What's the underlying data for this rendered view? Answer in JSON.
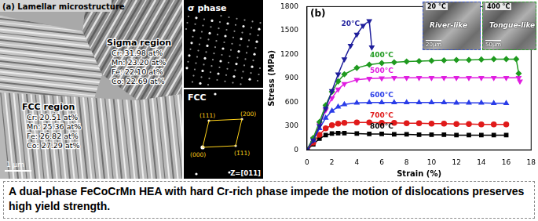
{
  "panel_a": {
    "label": "(a) Lamellar microstructure",
    "scale_bar": "1 μm",
    "regions": [
      {
        "name": "Sigma region",
        "composition": [
          "Cr: 31.98 at%",
          "Mn: 23.20 at%",
          "Fe: 22.10 at%",
          "Co: 22.69 at%"
        ]
      },
      {
        "name": "FCC region",
        "composition": [
          "Cr: 20.51 at%",
          "Mn: 25.36 at%",
          "Fe: 26.82 at%",
          "Co: 27.29 at%"
        ]
      }
    ],
    "diffraction": [
      {
        "title": "σ phase"
      },
      {
        "title": "FCC",
        "indices": [
          "(111)",
          "(200)",
          "(000)",
          "(1̄11)"
        ],
        "zone_axis": "Z=[011]"
      }
    ]
  },
  "chart_data": {
    "type": "line",
    "title": "(b)",
    "x_label": "Strain (%)",
    "y_label": "Stress (MPa)",
    "xlim": [
      0,
      18
    ],
    "xticks": [
      0,
      2,
      4,
      6,
      8,
      10,
      12,
      14,
      16,
      18
    ],
    "ylim": [
      0,
      1800
    ],
    "yticks": [
      0,
      300,
      600,
      900,
      1200,
      1500,
      1800
    ],
    "grid": false,
    "series": [
      {
        "name": "20°C",
        "color": "#1f1f9c",
        "marker": "triangle-down",
        "x": [
          0,
          0.5,
          1,
          1.5,
          2,
          2.5,
          3,
          3.5,
          4,
          4.5,
          5,
          5.2
        ],
        "values": [
          0,
          120,
          300,
          520,
          740,
          950,
          1140,
          1310,
          1450,
          1560,
          1620,
          1290
        ]
      },
      {
        "name": "400°C",
        "color": "#1f9a1f",
        "marker": "diamond",
        "x": [
          0,
          0.5,
          1,
          1.5,
          2,
          2.5,
          3,
          4,
          5,
          6,
          7,
          8,
          9,
          10,
          11,
          12,
          13,
          14,
          15,
          16,
          16.8,
          17
        ],
        "values": [
          0,
          150,
          350,
          560,
          730,
          860,
          950,
          1030,
          1070,
          1090,
          1100,
          1110,
          1115,
          1120,
          1125,
          1130,
          1130,
          1135,
          1140,
          1140,
          1140,
          960
        ]
      },
      {
        "name": "500°C",
        "color": "#e01ee0",
        "marker": "triangle-down",
        "x": [
          0,
          0.5,
          1,
          1.5,
          2,
          2.5,
          3,
          4,
          5,
          6,
          7,
          8,
          9,
          10,
          11,
          12,
          13,
          14,
          15,
          16,
          17,
          17.1
        ],
        "values": [
          0,
          140,
          320,
          500,
          650,
          760,
          830,
          880,
          895,
          900,
          905,
          905,
          905,
          905,
          905,
          905,
          905,
          905,
          905,
          905,
          905,
          860
        ]
      },
      {
        "name": "600°C",
        "color": "#2a3de8",
        "marker": "triangle",
        "x": [
          0,
          0.5,
          1,
          1.5,
          2,
          2.5,
          3,
          4,
          5,
          6,
          7,
          8,
          9,
          10,
          11,
          12,
          13,
          14,
          15,
          16
        ],
        "values": [
          0,
          120,
          270,
          400,
          490,
          540,
          570,
          590,
          595,
          595,
          595,
          595,
          595,
          595,
          595,
          590,
          590,
          590,
          585,
          585
        ]
      },
      {
        "name": "700°C",
        "color": "#e01a1a",
        "marker": "circle",
        "x": [
          0,
          0.5,
          1,
          1.5,
          2,
          2.5,
          3,
          4,
          5,
          6,
          7,
          8,
          9,
          10,
          11,
          12,
          13,
          14,
          15,
          16
        ],
        "values": [
          0,
          90,
          190,
          270,
          310,
          330,
          340,
          345,
          345,
          340,
          340,
          335,
          335,
          330,
          330,
          325,
          325,
          320,
          320,
          320
        ]
      },
      {
        "name": "800°C",
        "color": "#000000",
        "marker": "square",
        "x": [
          0,
          0.5,
          1,
          1.5,
          2,
          2.5,
          3,
          4,
          5,
          6,
          7,
          8,
          9,
          10,
          11,
          12,
          13,
          14,
          15,
          16
        ],
        "values": [
          0,
          70,
          140,
          185,
          205,
          210,
          210,
          205,
          200,
          200,
          195,
          195,
          190,
          190,
          190,
          185,
          185,
          185,
          185,
          185
        ]
      }
    ]
  },
  "insets": [
    {
      "temperature": "20 °C",
      "feature": "River-like",
      "scale_bar": "20μm"
    },
    {
      "temperature": "400 °C",
      "feature": "Tongue-like",
      "scale_bar": "50μm"
    }
  ],
  "caption": "A dual-phase FeCoCrMn HEA with hard Cr-rich phase impede the motion of dislocations preserves high yield strength."
}
